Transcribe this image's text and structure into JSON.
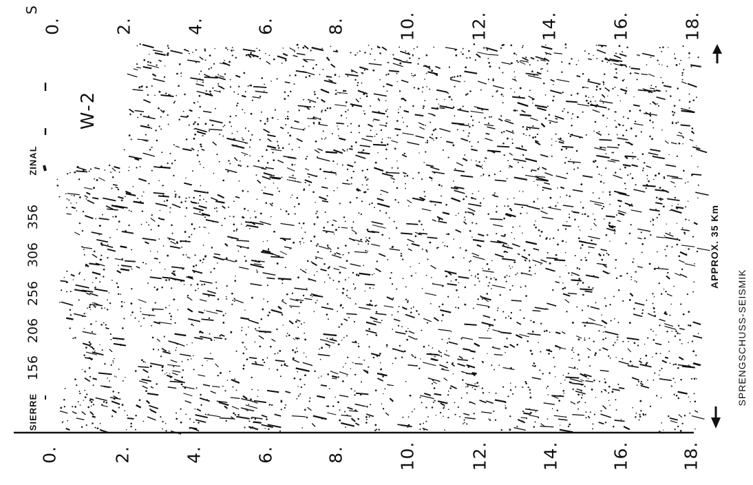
{
  "sections": {
    "left_axis_ticks": [
      "0.",
      "2.",
      "4.",
      "6.",
      "8.",
      "10.",
      "12.",
      "14.",
      "16.",
      "18."
    ],
    "right_axis_ticks": [
      "0.",
      "2.",
      "4.",
      "6.",
      "8.",
      "10.",
      "12.",
      "14.",
      "16.",
      "18."
    ],
    "right_axis_unit": "S",
    "shot_points": [
      "156",
      "206",
      "256",
      "306",
      "356"
    ],
    "location_start": "SIERRE",
    "location_end": "ZINAL",
    "profile_label": "W-2",
    "distance_label": "APPROX. 35 Km",
    "method_caption": "SPRENGSCHUSS-SEISMIK"
  },
  "colors": {
    "ink": "#111111",
    "paper": "#ffffff"
  }
}
